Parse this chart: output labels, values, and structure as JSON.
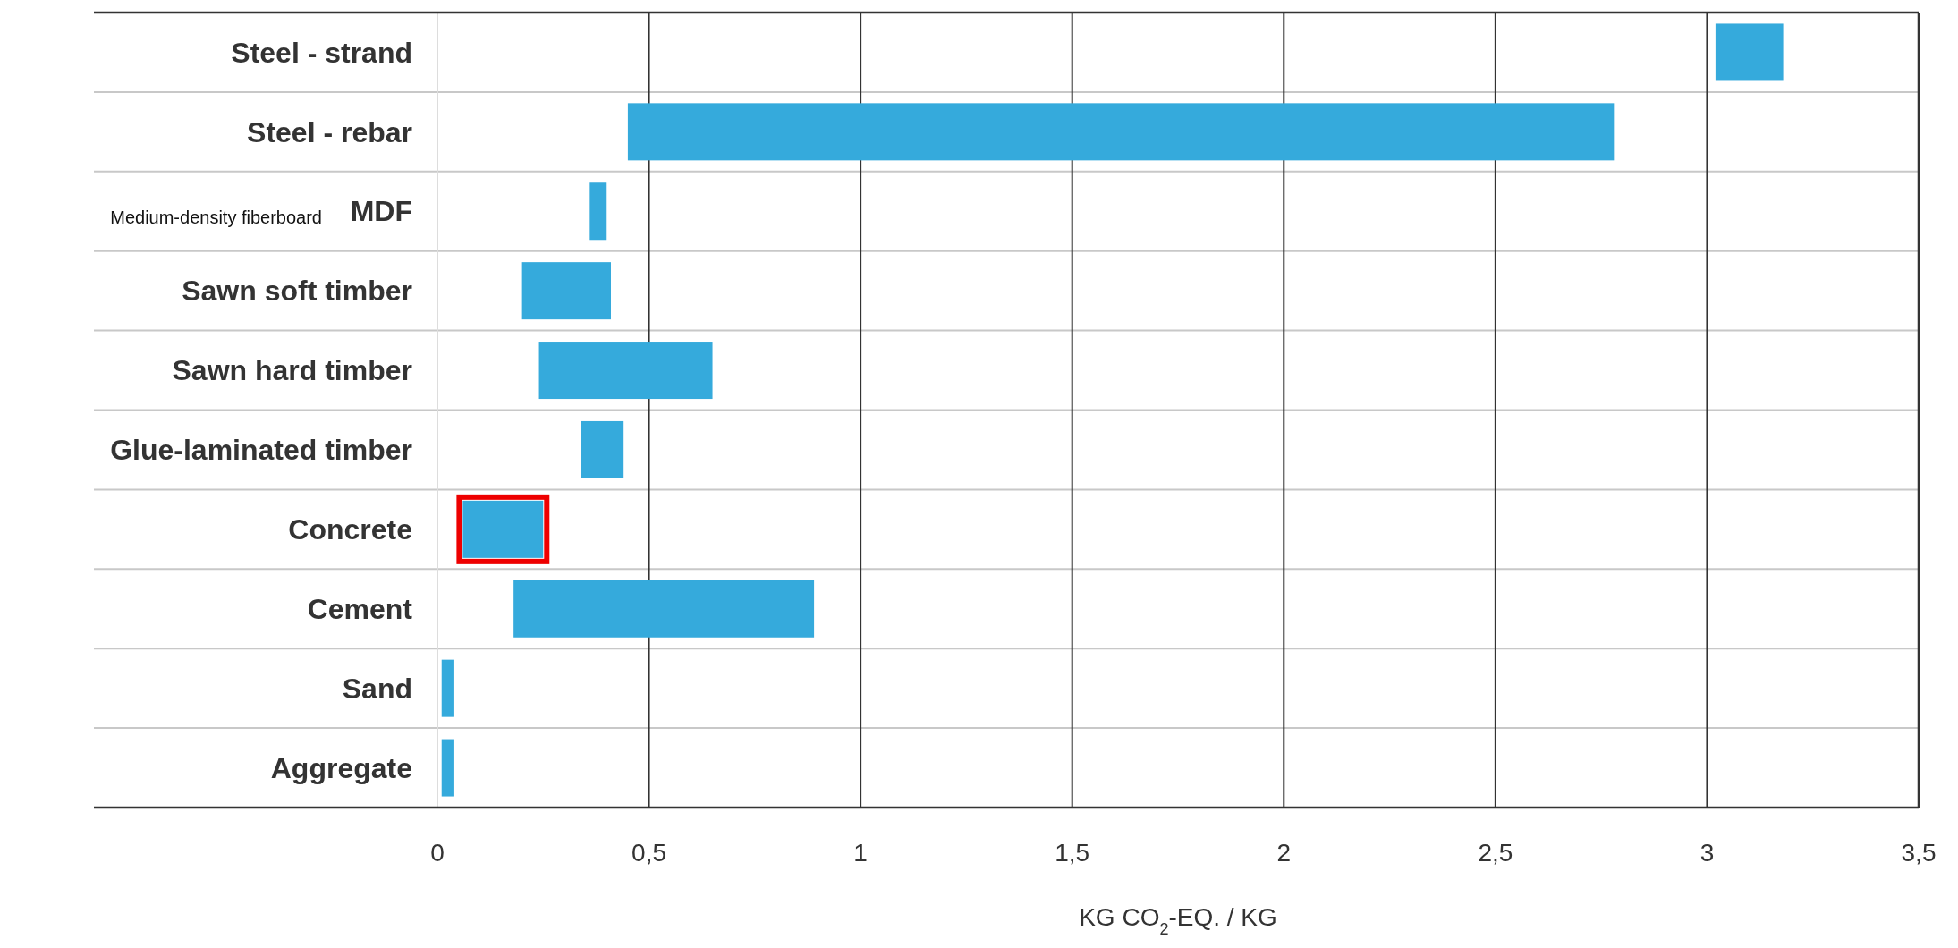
{
  "chart_data": {
    "type": "bar",
    "orientation": "horizontal",
    "xlabel": "KG CO$_{2}$-EQ. / KG",
    "categories": [
      "Steel - strand",
      "Steel - rebar",
      "MDF",
      "Sawn soft timber",
      "Sawn hard timber",
      "Glue-laminated timber",
      "Concrete",
      "Cement",
      "Sand",
      "Aggregate"
    ],
    "base": [
      3.02,
      0.45,
      0.36,
      0.2,
      0.24,
      0.34,
      0.06,
      0.18,
      0.01,
      0.01
    ],
    "values": [
      0.16,
      2.33,
      0.04,
      0.21,
      0.41,
      0.1,
      0.19,
      0.71,
      0.03,
      0.03
    ],
    "color": "#35aadc",
    "xlim": [
      0,
      3.5
    ],
    "xticks": [
      0,
      {
        "value": 0.5,
        "label": "0,5"
      },
      1,
      {
        "value": 1.5,
        "label": "1,5"
      },
      2,
      {
        "value": 2.5,
        "label": "2,5"
      },
      3,
      {
        "value": 3.5,
        "label": "3,5"
      }
    ],
    "grid": true,
    "annotations": [
      "Medium-density fiberboard"
    ]
  }
}
